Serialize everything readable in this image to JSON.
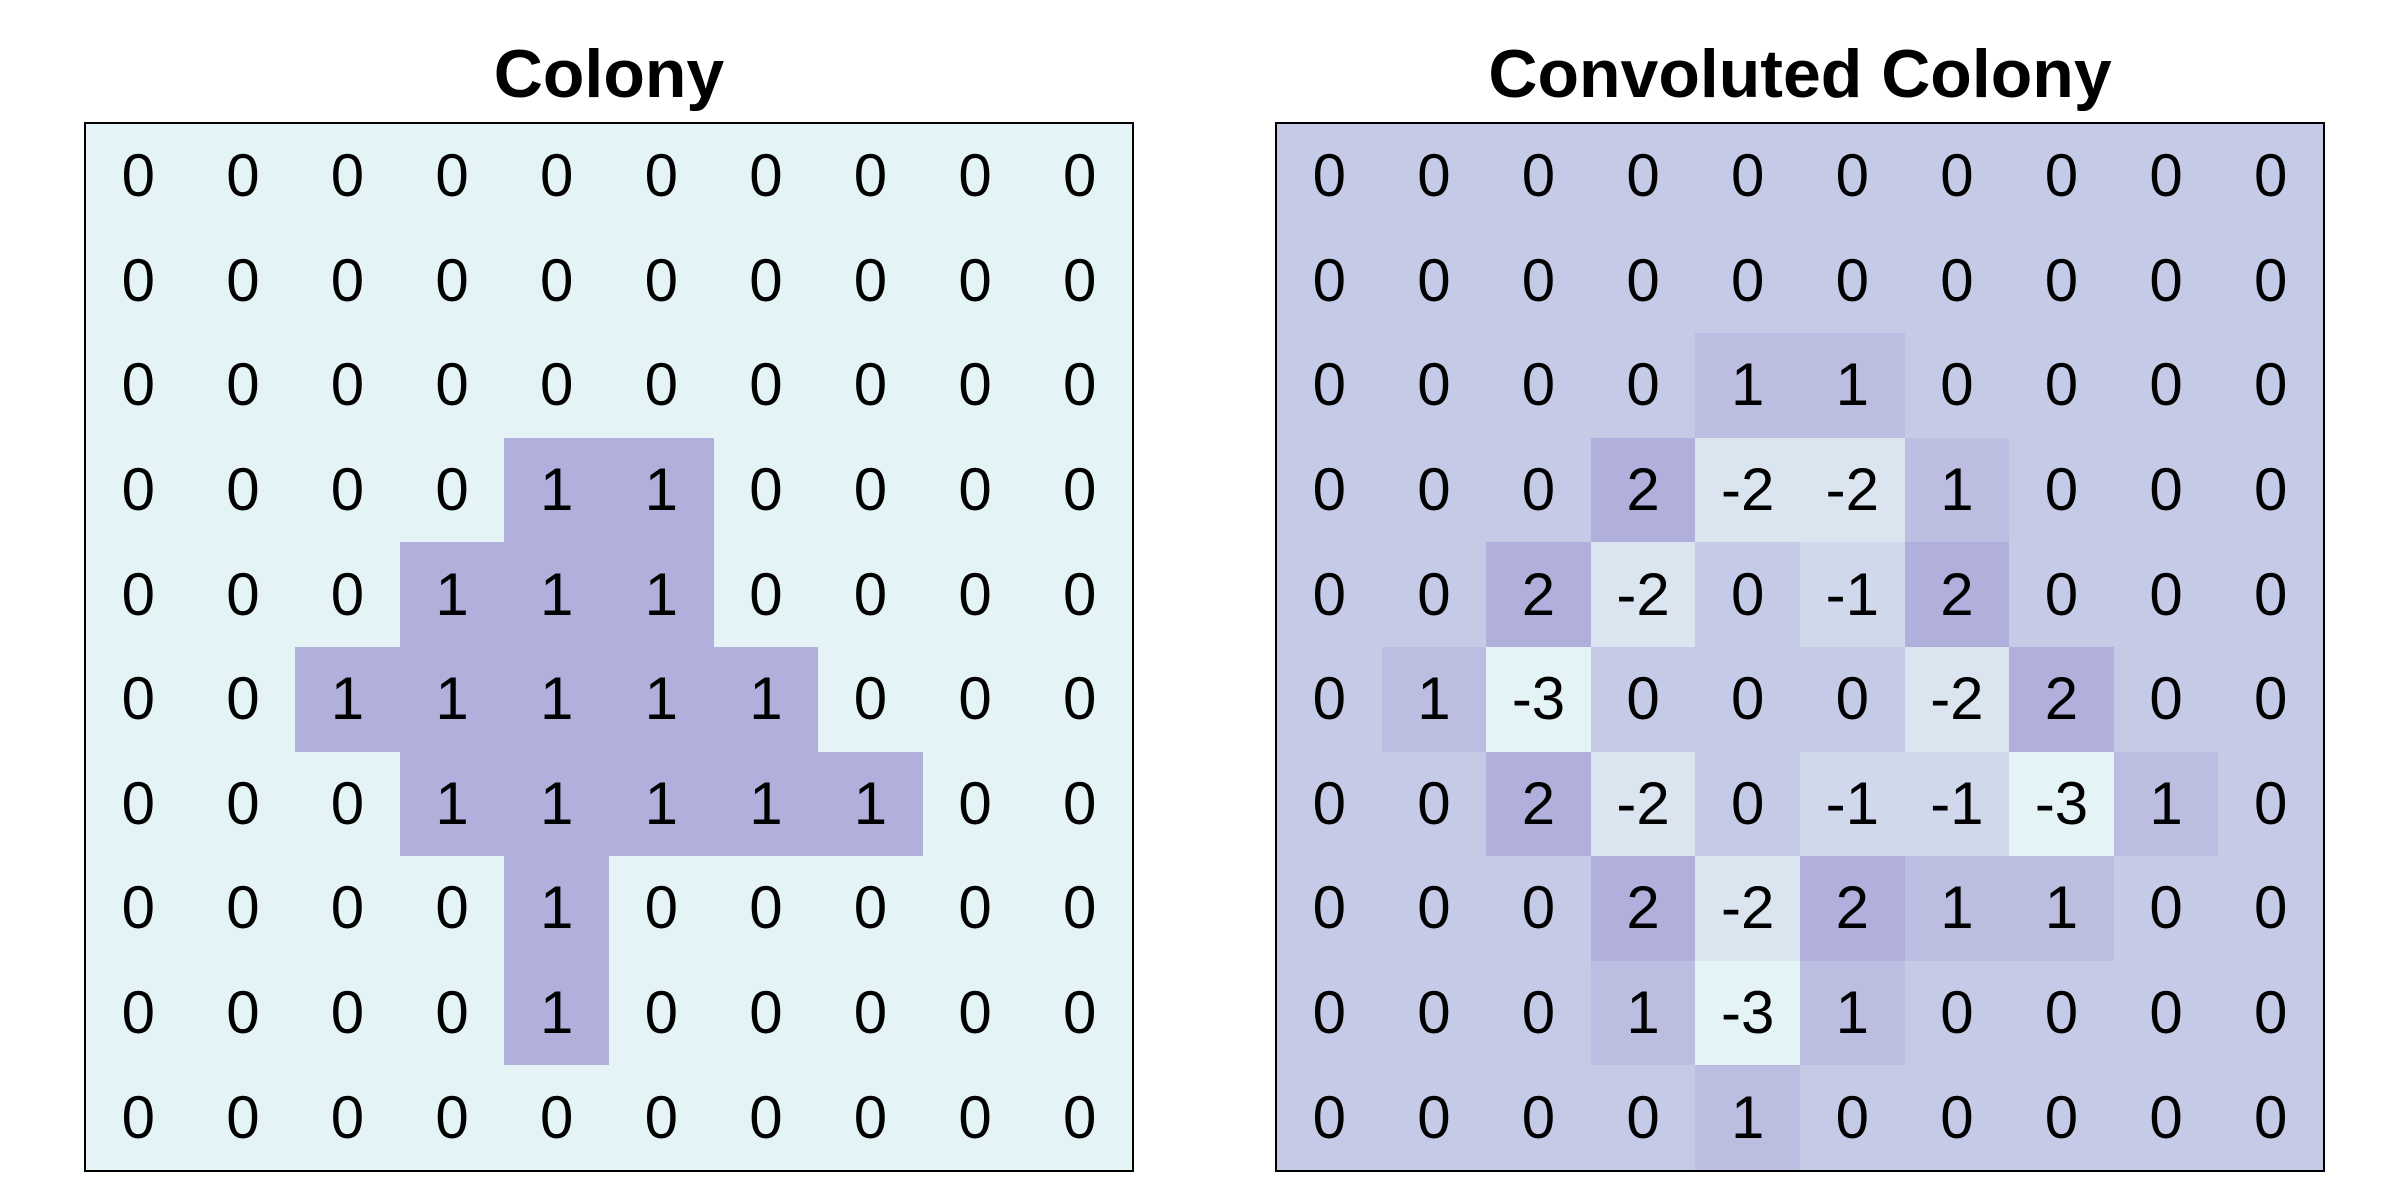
{
  "chart_data": [
    {
      "type": "heatmap",
      "title": "Colony",
      "values": [
        [
          0,
          0,
          0,
          0,
          0,
          0,
          0,
          0,
          0,
          0
        ],
        [
          0,
          0,
          0,
          0,
          0,
          0,
          0,
          0,
          0,
          0
        ],
        [
          0,
          0,
          0,
          0,
          0,
          0,
          0,
          0,
          0,
          0
        ],
        [
          0,
          0,
          0,
          0,
          1,
          1,
          0,
          0,
          0,
          0
        ],
        [
          0,
          0,
          0,
          1,
          1,
          1,
          0,
          0,
          0,
          0
        ],
        [
          0,
          0,
          1,
          1,
          1,
          1,
          1,
          0,
          0,
          0
        ],
        [
          0,
          0,
          0,
          1,
          1,
          1,
          1,
          1,
          0,
          0
        ],
        [
          0,
          0,
          0,
          0,
          1,
          0,
          0,
          0,
          0,
          0
        ],
        [
          0,
          0,
          0,
          0,
          1,
          0,
          0,
          0,
          0,
          0
        ],
        [
          0,
          0,
          0,
          0,
          0,
          0,
          0,
          0,
          0,
          0
        ]
      ],
      "color_low": "#e4f3f5",
      "color_high": "#b1afdc",
      "range": [
        0,
        1
      ]
    },
    {
      "type": "heatmap",
      "title": "Convoluted Colony",
      "values": [
        [
          0,
          0,
          0,
          0,
          0,
          0,
          0,
          0,
          0,
          0
        ],
        [
          0,
          0,
          0,
          0,
          0,
          0,
          0,
          0,
          0,
          0
        ],
        [
          0,
          0,
          0,
          0,
          1,
          1,
          0,
          0,
          0,
          0
        ],
        [
          0,
          0,
          0,
          2,
          -2,
          -2,
          1,
          0,
          0,
          0
        ],
        [
          0,
          0,
          2,
          -2,
          0,
          -1,
          2,
          0,
          0,
          0
        ],
        [
          0,
          1,
          -3,
          0,
          0,
          0,
          -2,
          2,
          0,
          0
        ],
        [
          0,
          0,
          2,
          -2,
          0,
          -1,
          -1,
          -3,
          1,
          0
        ],
        [
          0,
          0,
          0,
          2,
          -2,
          2,
          1,
          1,
          0,
          0
        ],
        [
          0,
          0,
          0,
          1,
          -3,
          1,
          0,
          0,
          0,
          0
        ],
        [
          0,
          0,
          0,
          0,
          1,
          0,
          0,
          0,
          0,
          0
        ]
      ],
      "color_low": "#e4f3f5",
      "color_high": "#b1afdc",
      "range": [
        -3,
        2
      ]
    }
  ]
}
